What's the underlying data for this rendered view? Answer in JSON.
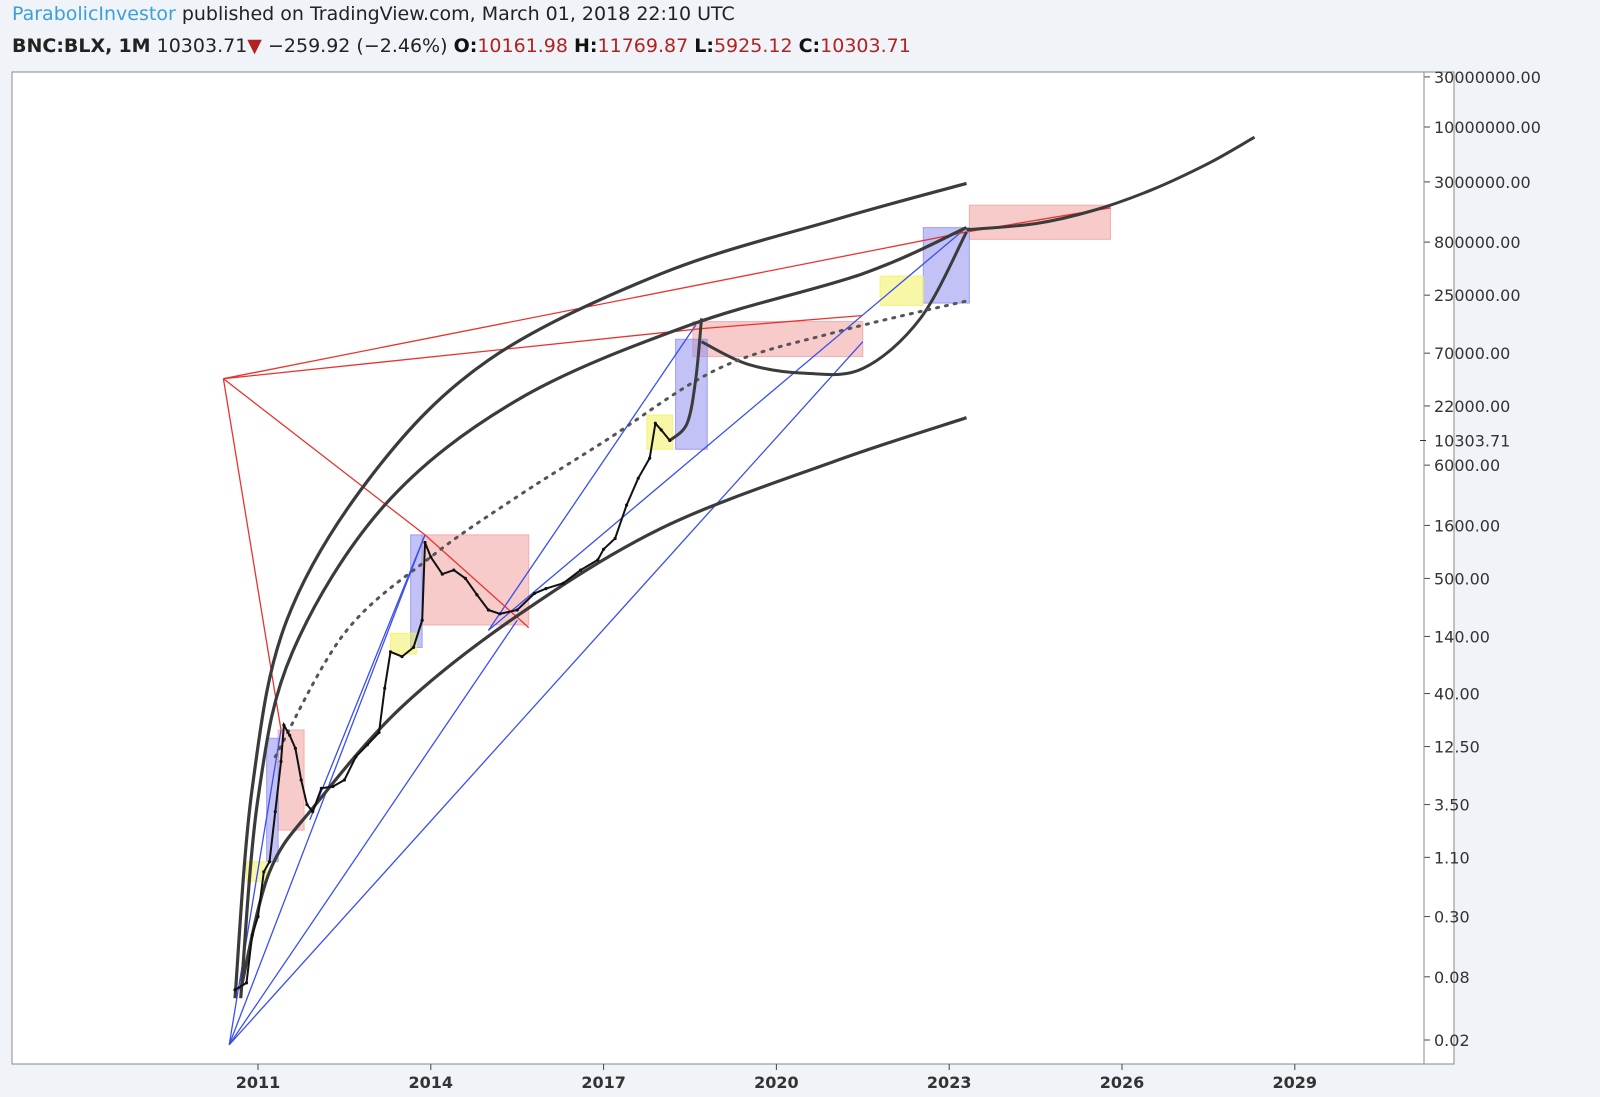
{
  "header": {
    "author": "ParabolicInvestor",
    "published": "published on TradingView.com, March 01, 2018 22:10 UTC",
    "symbol": "BNC:BLX,",
    "timeframe": "1M",
    "last": "10303.71",
    "arrow": "▼",
    "change": "−259.92 (−2.46%)",
    "o_label": "O:",
    "o_value": "10161.98",
    "h_label": "H:",
    "h_value": "11769.87",
    "l_label": "L:",
    "l_value": "5925.12",
    "c_label": "C:",
    "c_value": "10303.71"
  },
  "colors": {
    "background": "#f0f3f7",
    "plot": "#ffffff",
    "red": "#e8342f",
    "blue": "#3a4ff0",
    "arc": "#3b3b3b",
    "red_box": "#f2a0a0",
    "blue_box": "#8f8ff0",
    "yellow_box": "#f2f060"
  },
  "chart_data": {
    "type": "line",
    "title": "",
    "xlabel": "",
    "ylabel": "",
    "y_scale": "log",
    "x_ticks": [
      "2011",
      "2014",
      "2017",
      "2020",
      "2023",
      "2026",
      "2029"
    ],
    "x_tick_years": [
      2011,
      2014,
      2017,
      2020,
      2023,
      2026,
      2029
    ],
    "y_ticks": [
      "30000000.00",
      "10000000.00",
      "3000000.00",
      "800000.00",
      "250000.00",
      "70000.00",
      "22000.00",
      "6000.00",
      "1600.00",
      "500.00",
      "140.00",
      "40.00",
      "12.50",
      "3.50",
      "1.10",
      "0.30",
      "0.08",
      "0.02"
    ],
    "y_tick_values": [
      30000000,
      10000000,
      3000000,
      800000,
      250000,
      70000,
      22000,
      6000,
      1600,
      500,
      140,
      40,
      12.5,
      3.5,
      1.1,
      0.3,
      0.08,
      0.02
    ],
    "last_price_label": "10303.71",
    "last_price": 10303.71,
    "price_path": [
      [
        2010.6,
        0.06
      ],
      [
        2010.8,
        0.07
      ],
      [
        2010.9,
        0.2
      ],
      [
        2011.0,
        0.3
      ],
      [
        2011.1,
        0.8
      ],
      [
        2011.2,
        1.0
      ],
      [
        2011.3,
        3.0
      ],
      [
        2011.4,
        9.0
      ],
      [
        2011.45,
        20.0
      ],
      [
        2011.55,
        16.0
      ],
      [
        2011.65,
        12.0
      ],
      [
        2011.75,
        6.0
      ],
      [
        2011.85,
        3.5
      ],
      [
        2011.95,
        3.0
      ],
      [
        2012.1,
        5.0
      ],
      [
        2012.3,
        5.2
      ],
      [
        2012.5,
        6.0
      ],
      [
        2012.7,
        10.0
      ],
      [
        2012.9,
        13.0
      ],
      [
        2013.1,
        17.0
      ],
      [
        2013.2,
        45.0
      ],
      [
        2013.3,
        100.0
      ],
      [
        2013.5,
        90.0
      ],
      [
        2013.7,
        110.0
      ],
      [
        2013.85,
        200.0
      ],
      [
        2013.9,
        1100.0
      ],
      [
        2014.0,
        800.0
      ],
      [
        2014.2,
        550.0
      ],
      [
        2014.4,
        600.0
      ],
      [
        2014.6,
        500.0
      ],
      [
        2014.8,
        350.0
      ],
      [
        2015.0,
        250.0
      ],
      [
        2015.2,
        230.0
      ],
      [
        2015.5,
        250.0
      ],
      [
        2015.8,
        360.0
      ],
      [
        2016.0,
        400.0
      ],
      [
        2016.3,
        450.0
      ],
      [
        2016.6,
        600.0
      ],
      [
        2016.9,
        750.0
      ],
      [
        2017.0,
        950.0
      ],
      [
        2017.2,
        1200.0
      ],
      [
        2017.4,
        2500.0
      ],
      [
        2017.6,
        4500.0
      ],
      [
        2017.8,
        7000.0
      ],
      [
        2017.9,
        15000.0
      ],
      [
        2018.0,
        13000.0
      ],
      [
        2018.15,
        10303.71
      ]
    ],
    "projection_path": [
      [
        2018.15,
        10303.71
      ],
      [
        2018.45,
        15000.0
      ],
      [
        2018.6,
        40000.0
      ],
      [
        2018.7,
        150000.0
      ]
    ],
    "arcs": [
      [
        [
          2010.6,
          0.05
        ],
        [
          2010.9,
          5.0
        ],
        [
          2011.5,
          200.0
        ],
        [
          2013.0,
          5000.0
        ],
        [
          2015.0,
          60000.0
        ],
        [
          2018.0,
          400000.0
        ],
        [
          2021.0,
          1300000.0
        ],
        [
          2023.3,
          2900000.0
        ]
      ],
      [
        [
          2010.7,
          0.05
        ],
        [
          2011.0,
          4.0
        ],
        [
          2011.6,
          100.0
        ],
        [
          2013.2,
          2500.0
        ],
        [
          2015.5,
          25000.0
        ],
        [
          2018.5,
          130000.0
        ],
        [
          2021.5,
          400000.0
        ],
        [
          2023.3,
          1100000.0
        ]
      ],
      [
        [
          2010.7,
          0.06
        ],
        [
          2011.2,
          0.8
        ],
        [
          2012.0,
          3.5
        ],
        [
          2013.5,
          30.0
        ],
        [
          2015.5,
          220.0
        ],
        [
          2018.0,
          1500.0
        ],
        [
          2021.0,
          6500.0
        ],
        [
          2023.3,
          17000.0
        ]
      ]
    ],
    "bear_curve": [
      [
        2018.7,
        90000.0
      ],
      [
        2019.5,
        55000.0
      ],
      [
        2020.5,
        45000.0
      ],
      [
        2021.5,
        50000.0
      ],
      [
        2022.5,
        150000.0
      ],
      [
        2023.3,
        1000000.0
      ]
    ],
    "long_curve": [
      [
        2023.3,
        1050000.0
      ],
      [
        2024.5,
        1200000.0
      ],
      [
        2025.5,
        1600000.0
      ],
      [
        2026.5,
        2500000.0
      ],
      [
        2027.5,
        4500000.0
      ],
      [
        2028.3,
        8000000.0
      ]
    ],
    "dotted_trend": [
      [
        2011.3,
        10.0
      ],
      [
        2012.5,
        150.0
      ],
      [
        2014.0,
        800.0
      ],
      [
        2015.5,
        3000.0
      ],
      [
        2017.0,
        10000.0
      ],
      [
        2019.0,
        50000.0
      ],
      [
        2021.0,
        110000.0
      ],
      [
        2023.3,
        220000.0
      ]
    ],
    "blue_lines": [
      [
        [
          2010.5,
          0.018
        ],
        [
          2011.4,
          18.0
        ]
      ],
      [
        [
          2010.5,
          0.018
        ],
        [
          2013.9,
          1300.0
        ]
      ],
      [
        [
          2010.5,
          0.018
        ],
        [
          2015.5,
          200.0
        ]
      ],
      [
        [
          2010.5,
          0.018
        ],
        [
          2021.5,
          90000.0
        ]
      ],
      [
        [
          2011.9,
          2.5
        ],
        [
          2013.9,
          1300.0
        ]
      ],
      [
        [
          2015.0,
          160.0
        ],
        [
          2018.6,
          130000.0
        ]
      ],
      [
        [
          2015.0,
          160.0
        ],
        [
          2023.3,
          1100000.0
        ]
      ]
    ],
    "red_lines": [
      [
        [
          2010.4,
          40000.0
        ],
        [
          2011.4,
          18.0
        ]
      ],
      [
        [
          2010.4,
          40000.0
        ],
        [
          2013.9,
          1300.0
        ]
      ],
      [
        [
          2013.9,
          1300.0
        ],
        [
          2015.7,
          170.0
        ]
      ],
      [
        [
          2010.4,
          40000.0
        ],
        [
          2018.7,
          120000.0
        ]
      ],
      [
        [
          2010.4,
          40000.0
        ],
        [
          2023.3,
          1000000.0
        ]
      ],
      [
        [
          2018.7,
          120000.0
        ],
        [
          2021.5,
          160000.0
        ]
      ],
      [
        [
          2023.3,
          1000000.0
        ],
        [
          2025.8,
          1700000.0
        ]
      ]
    ],
    "red_boxes": [
      [
        2011.35,
        18.0,
        2011.8,
        2.0
      ],
      [
        2013.85,
        1300.0,
        2015.7,
        180.0
      ],
      [
        2018.55,
        140000.0,
        2021.5,
        65000.0
      ],
      [
        2023.35,
        1800000.0,
        2025.8,
        850000.0
      ]
    ],
    "blue_boxes": [
      [
        2011.15,
        15.0,
        2011.35,
        1.0
      ],
      [
        2013.65,
        1300.0,
        2013.85,
        110.0
      ],
      [
        2018.25,
        95000.0,
        2018.8,
        8500.0
      ],
      [
        2022.55,
        1100000.0,
        2023.35,
        210000.0
      ]
    ],
    "yellow_boxes": [
      [
        2010.8,
        1.0,
        2011.15,
        0.65
      ],
      [
        2013.3,
        150.0,
        2013.75,
        95.0
      ],
      [
        2017.75,
        18000.0,
        2018.2,
        8500.0
      ],
      [
        2021.8,
        380000.0,
        2022.55,
        200000.0
      ]
    ]
  }
}
